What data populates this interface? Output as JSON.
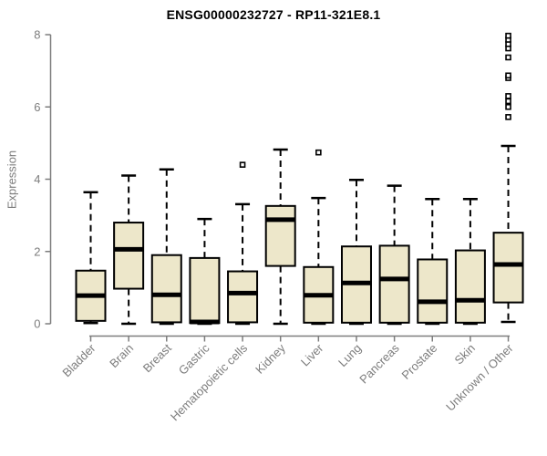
{
  "title": "ENSG00000232727 - RP11-321E8.1",
  "chart_data": {
    "type": "boxplot",
    "title": "ENSG00000232727 - RP11-321E8.1",
    "xlabel": "",
    "ylabel": "Expression",
    "ylim": [
      0,
      8
    ],
    "yticks": [
      0,
      2,
      4,
      6,
      8
    ],
    "grid": false,
    "legend": false,
    "background_color": "#ffffff",
    "box_fill_color": "#ede7ca",
    "box_border_color": "#000000",
    "median_color": "#000000",
    "whisker_color": "#000000",
    "outlier_color": "#000000",
    "axis_color": "#7d7d7d",
    "tick_label_color": "#7d7d7d",
    "title_color": "#000000",
    "categories": [
      "Bladder",
      "Brain",
      "Breast",
      "Gastric",
      "Hematopoietic cells",
      "Kidney",
      "Liver",
      "Lung",
      "Pancreas",
      "Prostate",
      "Skin",
      "Unknown / Other"
    ],
    "boxes": [
      {
        "category": "Bladder",
        "whisker_low": 0.02,
        "q1": 0.08,
        "median": 0.78,
        "q3": 1.47,
        "whisker_high": 3.64,
        "outliers": []
      },
      {
        "category": "Brain",
        "whisker_low": 0.0,
        "q1": 0.97,
        "median": 2.06,
        "q3": 2.8,
        "whisker_high": 4.1,
        "outliers": []
      },
      {
        "category": "Breast",
        "whisker_low": 0.0,
        "q1": 0.04,
        "median": 0.8,
        "q3": 1.9,
        "whisker_high": 4.27,
        "outliers": []
      },
      {
        "category": "Gastric",
        "whisker_low": 0.0,
        "q1": 0.02,
        "median": 0.05,
        "q3": 1.82,
        "whisker_high": 2.9,
        "outliers": []
      },
      {
        "category": "Hematopoietic cells",
        "whisker_low": 0.0,
        "q1": 0.04,
        "median": 0.85,
        "q3": 1.45,
        "whisker_high": 3.31,
        "outliers": [
          4.4
        ]
      },
      {
        "category": "Kidney",
        "whisker_low": 0.0,
        "q1": 1.6,
        "median": 2.88,
        "q3": 3.26,
        "whisker_high": 4.82,
        "outliers": []
      },
      {
        "category": "Liver",
        "whisker_low": 0.0,
        "q1": 0.03,
        "median": 0.79,
        "q3": 1.57,
        "whisker_high": 3.48,
        "outliers": [
          4.74
        ]
      },
      {
        "category": "Lung",
        "whisker_low": 0.0,
        "q1": 0.03,
        "median": 1.13,
        "q3": 2.14,
        "whisker_high": 3.98,
        "outliers": []
      },
      {
        "category": "Pancreas",
        "whisker_low": 0.0,
        "q1": 0.03,
        "median": 1.24,
        "q3": 2.16,
        "whisker_high": 3.82,
        "outliers": []
      },
      {
        "category": "Prostate",
        "whisker_low": 0.0,
        "q1": 0.03,
        "median": 0.61,
        "q3": 1.78,
        "whisker_high": 3.45,
        "outliers": []
      },
      {
        "category": "Skin",
        "whisker_low": 0.0,
        "q1": 0.03,
        "median": 0.65,
        "q3": 2.03,
        "whisker_high": 3.45,
        "outliers": []
      },
      {
        "category": "Unknown / Other",
        "whisker_low": 0.05,
        "q1": 0.59,
        "median": 1.64,
        "q3": 2.52,
        "whisker_high": 4.92,
        "outliers": [
          5.72,
          6.0,
          6.16,
          6.3,
          6.8,
          6.87,
          7.37,
          7.62,
          7.74,
          7.86,
          7.97
        ]
      }
    ]
  }
}
